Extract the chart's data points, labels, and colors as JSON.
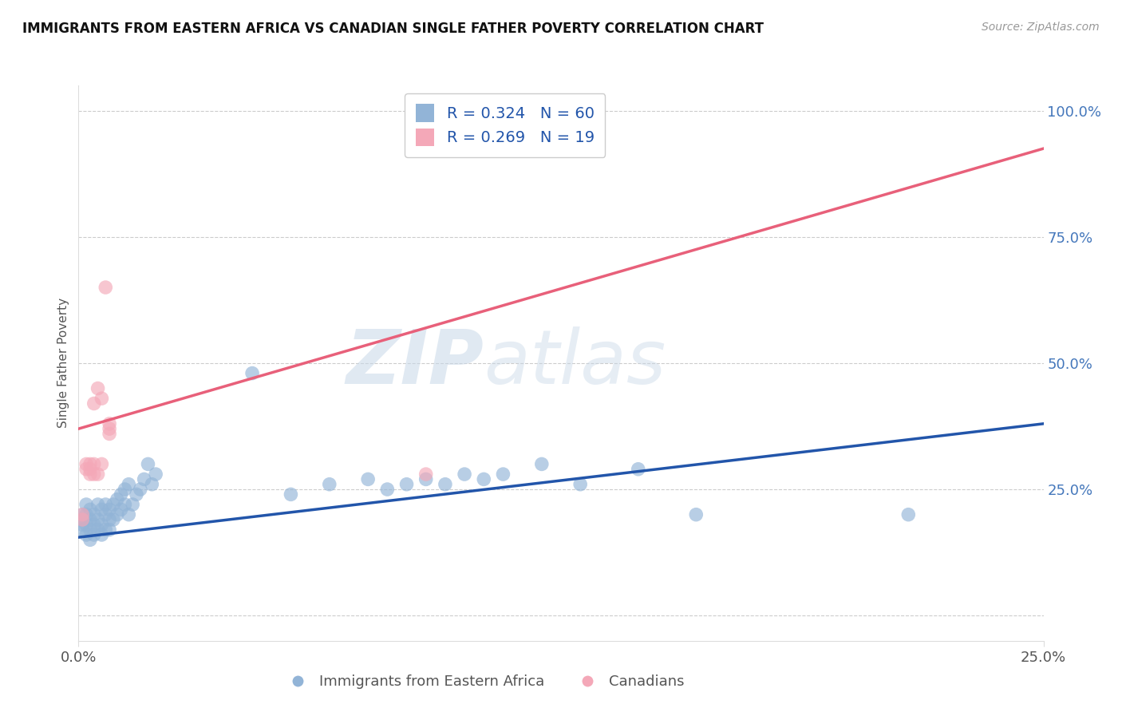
{
  "title": "IMMIGRANTS FROM EASTERN AFRICA VS CANADIAN SINGLE FATHER POVERTY CORRELATION CHART",
  "source": "Source: ZipAtlas.com",
  "ylabel": "Single Father Poverty",
  "legend_label_blue": "Immigrants from Eastern Africa",
  "legend_label_pink": "Canadians",
  "blue_R": 0.324,
  "blue_N": 60,
  "pink_R": 0.269,
  "pink_N": 19,
  "blue_color": "#92b4d7",
  "pink_color": "#f4a8b8",
  "trendline_blue": "#2255aa",
  "trendline_pink": "#e8607a",
  "watermark_zip": "ZIP",
  "watermark_atlas": "atlas",
  "xlim": [
    0.0,
    0.25
  ],
  "ylim": [
    -0.05,
    1.05
  ],
  "yticks": [
    0.0,
    0.25,
    0.5,
    0.75,
    1.0
  ],
  "ytick_labels": [
    "",
    "25.0%",
    "50.0%",
    "75.0%",
    "100.0%"
  ],
  "xtick_left": "0.0%",
  "xtick_right": "25.0%",
  "grid_color": "#cccccc",
  "bg_color": "#ffffff",
  "blue_trend_x0": 0.0,
  "blue_trend_y0": 0.155,
  "blue_trend_x1": 0.25,
  "blue_trend_y1": 0.38,
  "pink_trend_x0": 0.0,
  "pink_trend_y0": 0.37,
  "pink_trend_x1": 0.25,
  "pink_trend_y1": 0.925,
  "blue_x": [
    0.001,
    0.001,
    0.001,
    0.001,
    0.002,
    0.002,
    0.002,
    0.002,
    0.003,
    0.003,
    0.003,
    0.003,
    0.004,
    0.004,
    0.004,
    0.005,
    0.005,
    0.005,
    0.006,
    0.006,
    0.006,
    0.007,
    0.007,
    0.007,
    0.008,
    0.008,
    0.008,
    0.009,
    0.009,
    0.01,
    0.01,
    0.011,
    0.011,
    0.012,
    0.012,
    0.013,
    0.013,
    0.014,
    0.015,
    0.016,
    0.017,
    0.018,
    0.019,
    0.02,
    0.045,
    0.055,
    0.065,
    0.075,
    0.08,
    0.085,
    0.09,
    0.095,
    0.1,
    0.105,
    0.11,
    0.12,
    0.13,
    0.145,
    0.16,
    0.215
  ],
  "blue_y": [
    0.2,
    0.19,
    0.18,
    0.17,
    0.22,
    0.2,
    0.18,
    0.16,
    0.21,
    0.19,
    0.17,
    0.15,
    0.2,
    0.18,
    0.16,
    0.22,
    0.19,
    0.17,
    0.21,
    0.18,
    0.16,
    0.22,
    0.2,
    0.17,
    0.21,
    0.19,
    0.17,
    0.22,
    0.19,
    0.23,
    0.2,
    0.24,
    0.21,
    0.25,
    0.22,
    0.26,
    0.2,
    0.22,
    0.24,
    0.25,
    0.27,
    0.3,
    0.26,
    0.28,
    0.48,
    0.24,
    0.26,
    0.27,
    0.25,
    0.26,
    0.27,
    0.26,
    0.28,
    0.27,
    0.28,
    0.3,
    0.26,
    0.29,
    0.2,
    0.2
  ],
  "pink_x": [
    0.001,
    0.001,
    0.002,
    0.002,
    0.003,
    0.003,
    0.003,
    0.004,
    0.004,
    0.004,
    0.005,
    0.005,
    0.006,
    0.006,
    0.007,
    0.008,
    0.008,
    0.008,
    0.09
  ],
  "pink_y": [
    0.2,
    0.19,
    0.3,
    0.29,
    0.3,
    0.29,
    0.28,
    0.3,
    0.28,
    0.42,
    0.45,
    0.28,
    0.43,
    0.3,
    0.65,
    0.38,
    0.37,
    0.36,
    0.28
  ]
}
